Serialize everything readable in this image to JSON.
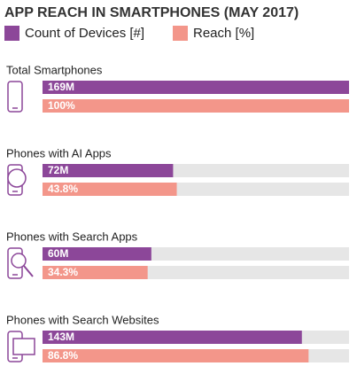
{
  "chart_data": {
    "type": "bar",
    "title": "APP REACH IN SMARTPHONES (MAY 2017)",
    "categories": [
      "Total Smartphones",
      "Phones with AI Apps",
      "Phones with Search Apps",
      "Phones with Search Websites"
    ],
    "series": [
      {
        "name": "Count of Devices [#]",
        "color": "#8c4799",
        "values": [
          169,
          72,
          60,
          143
        ],
        "value_labels": [
          "169M",
          "72M",
          "60M",
          "143M"
        ]
      },
      {
        "name": "Reach [%]",
        "color": "#f3968a",
        "values": [
          100,
          43.8,
          34.3,
          86.8
        ],
        "value_labels": [
          "100%",
          "43.8%",
          "34.3%",
          "86.8%"
        ]
      }
    ]
  }
}
